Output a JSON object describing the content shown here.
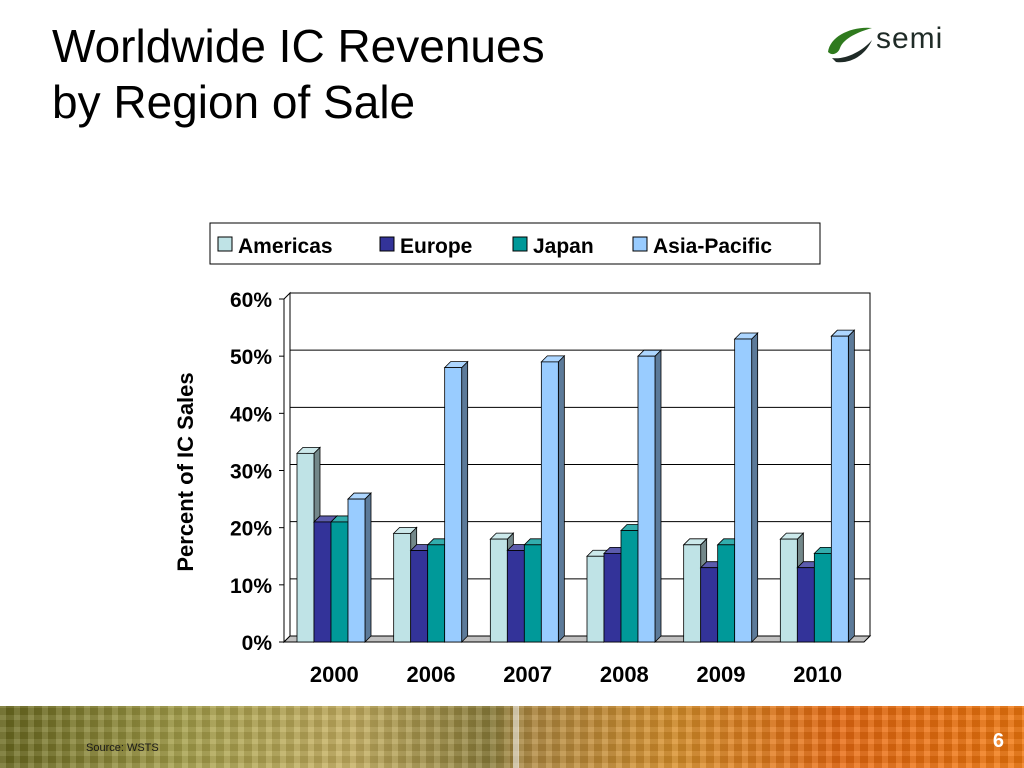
{
  "slide": {
    "title_line1": "Worldwide IC Revenues",
    "title_line2": "by Region of Sale",
    "logo_text": "semi",
    "source": "Source: WSTS",
    "page_number": "6"
  },
  "colors": {
    "americas": "#bfe3e6",
    "europe": "#333399",
    "japan": "#009999",
    "asia_pacific": "#99ccff",
    "logo_green": "#2f7a1e",
    "logo_dark": "#1f2b27"
  },
  "chart_data": {
    "type": "bar",
    "style": "3d-clustered-column",
    "title": "",
    "xlabel": "",
    "ylabel": "Percent of IC Sales",
    "categories": [
      "2000",
      "2006",
      "2007",
      "2008",
      "2009",
      "2010"
    ],
    "series": [
      {
        "name": "Americas",
        "values": [
          33,
          19,
          18,
          15,
          17,
          18
        ]
      },
      {
        "name": "Europe",
        "values": [
          21,
          16,
          16,
          15.5,
          13,
          13
        ]
      },
      {
        "name": "Japan",
        "values": [
          21,
          17,
          17,
          19.5,
          17,
          15.5
        ]
      },
      {
        "name": "Asia-Pacific",
        "values": [
          25,
          48,
          49,
          50,
          53,
          53.5
        ]
      }
    ],
    "ylim": [
      0,
      60
    ],
    "yticks": [
      0,
      10,
      20,
      30,
      40,
      50,
      60
    ],
    "ytick_labels": [
      "0%",
      "10%",
      "20%",
      "30%",
      "40%",
      "50%",
      "60%"
    ],
    "grid": true,
    "legend_position": "top"
  }
}
